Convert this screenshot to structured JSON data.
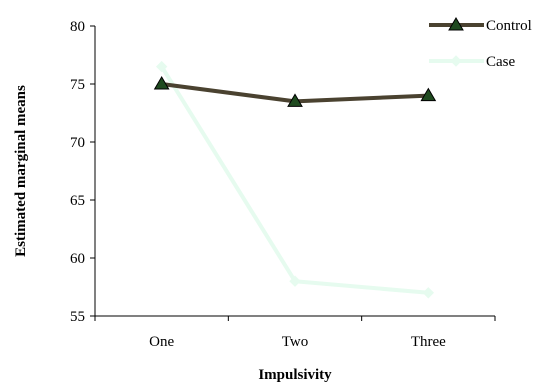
{
  "chart_data": {
    "type": "line",
    "categories": [
      "One",
      "Two",
      "Three"
    ],
    "series": [
      {
        "name": "Control",
        "values": [
          75.0,
          73.5,
          74.0
        ],
        "color": "#4a4230",
        "marker": "triangle"
      },
      {
        "name": "Case",
        "values": [
          76.5,
          58.0,
          57.0
        ],
        "color": "#e6fbef",
        "marker": "diamond"
      }
    ],
    "xlabel": "Impulsivity",
    "ylabel": "Estimated marginal means",
    "ylim": [
      55,
      80
    ],
    "yticks": [
      55,
      60,
      65,
      70,
      75,
      80
    ],
    "grid": false,
    "legend_position": "top-right"
  }
}
